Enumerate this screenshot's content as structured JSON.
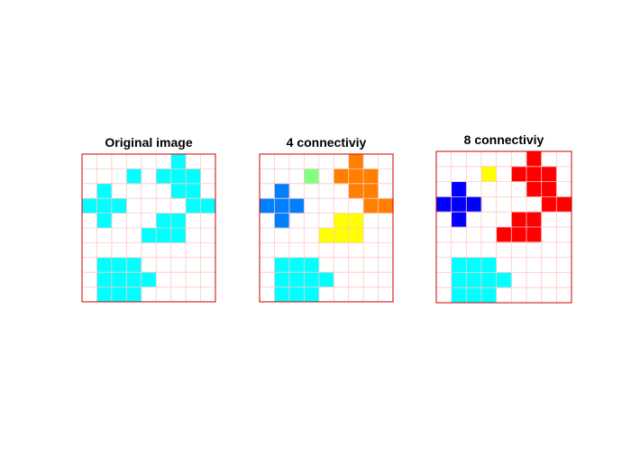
{
  "chart_data": [
    {
      "type": "heatmap",
      "title": "Original image",
      "rows": 10,
      "cols": 9,
      "grid": true,
      "grid_color": "#ffc8c8",
      "frame_color": "#cc0000",
      "background_color": "#ffffff",
      "cells": [
        {
          "row": 0,
          "col": 6,
          "color": "#00ffff"
        },
        {
          "row": 1,
          "col": 3,
          "color": "#00ffff"
        },
        {
          "row": 1,
          "col": 5,
          "color": "#00ffff"
        },
        {
          "row": 1,
          "col": 6,
          "color": "#00ffff"
        },
        {
          "row": 1,
          "col": 7,
          "color": "#00ffff"
        },
        {
          "row": 2,
          "col": 1,
          "color": "#00ffff"
        },
        {
          "row": 2,
          "col": 6,
          "color": "#00ffff"
        },
        {
          "row": 2,
          "col": 7,
          "color": "#00ffff"
        },
        {
          "row": 3,
          "col": 0,
          "color": "#00ffff"
        },
        {
          "row": 3,
          "col": 1,
          "color": "#00ffff"
        },
        {
          "row": 3,
          "col": 2,
          "color": "#00ffff"
        },
        {
          "row": 3,
          "col": 7,
          "color": "#00ffff"
        },
        {
          "row": 3,
          "col": 8,
          "color": "#00ffff"
        },
        {
          "row": 4,
          "col": 1,
          "color": "#00ffff"
        },
        {
          "row": 4,
          "col": 5,
          "color": "#00ffff"
        },
        {
          "row": 4,
          "col": 6,
          "color": "#00ffff"
        },
        {
          "row": 5,
          "col": 4,
          "color": "#00ffff"
        },
        {
          "row": 5,
          "col": 5,
          "color": "#00ffff"
        },
        {
          "row": 5,
          "col": 6,
          "color": "#00ffff"
        },
        {
          "row": 7,
          "col": 1,
          "color": "#00ffff"
        },
        {
          "row": 7,
          "col": 2,
          "color": "#00ffff"
        },
        {
          "row": 7,
          "col": 3,
          "color": "#00ffff"
        },
        {
          "row": 8,
          "col": 1,
          "color": "#00ffff"
        },
        {
          "row": 8,
          "col": 2,
          "color": "#00ffff"
        },
        {
          "row": 8,
          "col": 3,
          "color": "#00ffff"
        },
        {
          "row": 8,
          "col": 4,
          "color": "#00ffff"
        },
        {
          "row": 9,
          "col": 1,
          "color": "#00ffff"
        },
        {
          "row": 9,
          "col": 2,
          "color": "#00ffff"
        },
        {
          "row": 9,
          "col": 3,
          "color": "#00ffff"
        }
      ]
    },
    {
      "type": "heatmap",
      "title": "4 connectiviy",
      "rows": 10,
      "cols": 9,
      "grid": true,
      "grid_color": "#ffc8c8",
      "frame_color": "#cc0000",
      "background_color": "#ffffff",
      "cells": [
        {
          "row": 0,
          "col": 6,
          "color": "#ff8000"
        },
        {
          "row": 1,
          "col": 3,
          "color": "#80ff80"
        },
        {
          "row": 1,
          "col": 5,
          "color": "#ff8000"
        },
        {
          "row": 1,
          "col": 6,
          "color": "#ff8000"
        },
        {
          "row": 1,
          "col": 7,
          "color": "#ff8000"
        },
        {
          "row": 2,
          "col": 1,
          "color": "#0080ff"
        },
        {
          "row": 2,
          "col": 6,
          "color": "#ff8000"
        },
        {
          "row": 2,
          "col": 7,
          "color": "#ff8000"
        },
        {
          "row": 3,
          "col": 0,
          "color": "#0080ff"
        },
        {
          "row": 3,
          "col": 1,
          "color": "#0080ff"
        },
        {
          "row": 3,
          "col": 2,
          "color": "#0080ff"
        },
        {
          "row": 3,
          "col": 7,
          "color": "#ff8000"
        },
        {
          "row": 3,
          "col": 8,
          "color": "#ff8000"
        },
        {
          "row": 4,
          "col": 1,
          "color": "#0080ff"
        },
        {
          "row": 4,
          "col": 5,
          "color": "#ffff00"
        },
        {
          "row": 4,
          "col": 6,
          "color": "#ffff00"
        },
        {
          "row": 5,
          "col": 4,
          "color": "#ffff00"
        },
        {
          "row": 5,
          "col": 5,
          "color": "#ffff00"
        },
        {
          "row": 5,
          "col": 6,
          "color": "#ffff00"
        },
        {
          "row": 7,
          "col": 1,
          "color": "#00ffff"
        },
        {
          "row": 7,
          "col": 2,
          "color": "#00ffff"
        },
        {
          "row": 7,
          "col": 3,
          "color": "#00ffff"
        },
        {
          "row": 8,
          "col": 1,
          "color": "#00ffff"
        },
        {
          "row": 8,
          "col": 2,
          "color": "#00ffff"
        },
        {
          "row": 8,
          "col": 3,
          "color": "#00ffff"
        },
        {
          "row": 8,
          "col": 4,
          "color": "#00ffff"
        },
        {
          "row": 9,
          "col": 1,
          "color": "#00ffff"
        },
        {
          "row": 9,
          "col": 2,
          "color": "#00ffff"
        },
        {
          "row": 9,
          "col": 3,
          "color": "#00ffff"
        }
      ]
    },
    {
      "type": "heatmap",
      "title": "8 connectiviy",
      "rows": 10,
      "cols": 9,
      "grid": true,
      "grid_color": "#ffc8c8",
      "frame_color": "#cc0000",
      "background_color": "#ffffff",
      "cells": [
        {
          "row": 0,
          "col": 6,
          "color": "#ff0000"
        },
        {
          "row": 1,
          "col": 3,
          "color": "#ffff00"
        },
        {
          "row": 1,
          "col": 5,
          "color": "#ff0000"
        },
        {
          "row": 1,
          "col": 6,
          "color": "#ff0000"
        },
        {
          "row": 1,
          "col": 7,
          "color": "#ff0000"
        },
        {
          "row": 2,
          "col": 1,
          "color": "#0000ff"
        },
        {
          "row": 2,
          "col": 6,
          "color": "#ff0000"
        },
        {
          "row": 2,
          "col": 7,
          "color": "#ff0000"
        },
        {
          "row": 3,
          "col": 0,
          "color": "#0000ff"
        },
        {
          "row": 3,
          "col": 1,
          "color": "#0000ff"
        },
        {
          "row": 3,
          "col": 2,
          "color": "#0000ff"
        },
        {
          "row": 3,
          "col": 7,
          "color": "#ff0000"
        },
        {
          "row": 3,
          "col": 8,
          "color": "#ff0000"
        },
        {
          "row": 4,
          "col": 1,
          "color": "#0000ff"
        },
        {
          "row": 4,
          "col": 5,
          "color": "#ff0000"
        },
        {
          "row": 4,
          "col": 6,
          "color": "#ff0000"
        },
        {
          "row": 5,
          "col": 4,
          "color": "#ff0000"
        },
        {
          "row": 5,
          "col": 5,
          "color": "#ff0000"
        },
        {
          "row": 5,
          "col": 6,
          "color": "#ff0000"
        },
        {
          "row": 7,
          "col": 1,
          "color": "#00ffff"
        },
        {
          "row": 7,
          "col": 2,
          "color": "#00ffff"
        },
        {
          "row": 7,
          "col": 3,
          "color": "#00ffff"
        },
        {
          "row": 8,
          "col": 1,
          "color": "#00ffff"
        },
        {
          "row": 8,
          "col": 2,
          "color": "#00ffff"
        },
        {
          "row": 8,
          "col": 3,
          "color": "#00ffff"
        },
        {
          "row": 8,
          "col": 4,
          "color": "#00ffff"
        },
        {
          "row": 9,
          "col": 1,
          "color": "#00ffff"
        },
        {
          "row": 9,
          "col": 2,
          "color": "#00ffff"
        },
        {
          "row": 9,
          "col": 3,
          "color": "#00ffff"
        }
      ]
    }
  ]
}
